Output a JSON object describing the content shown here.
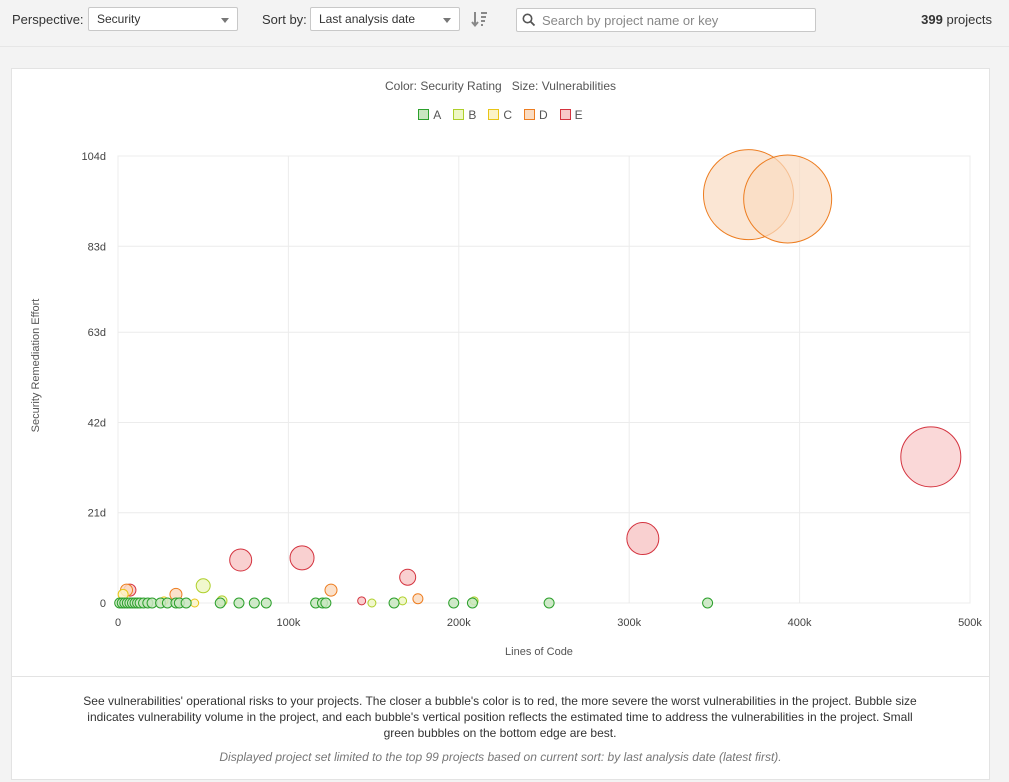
{
  "topbar": {
    "perspective_label": "Perspective:",
    "perspective_value": "Security",
    "sort_label": "Sort by:",
    "sort_value": "Last analysis date",
    "search_placeholder": "Search by project name or key",
    "project_count": "399",
    "project_count_suffix": "projects"
  },
  "legend": {
    "subtitle": "Color: Security Rating   Size: Vulnerabilities",
    "items": [
      {
        "label": "A",
        "fill": "#c8e6c0",
        "stroke": "#2ca02c"
      },
      {
        "label": "B",
        "fill": "#eef7c4",
        "stroke": "#aecf2a"
      },
      {
        "label": "C",
        "fill": "#fbf3c6",
        "stroke": "#e8c516"
      },
      {
        "label": "D",
        "fill": "#fadcc2",
        "stroke": "#ed7d20"
      },
      {
        "label": "E",
        "fill": "#f8c8c8",
        "stroke": "#d4333f"
      }
    ]
  },
  "chart_data": {
    "type": "scatter",
    "xlabel": "Lines of Code",
    "ylabel": "Security Remediation Effort",
    "xlim": [
      0,
      500000
    ],
    "ylim": [
      0,
      104
    ],
    "xticks": [
      0,
      100000,
      200000,
      300000,
      400000,
      500000
    ],
    "xtick_labels": [
      "0",
      "100k",
      "200k",
      "300k",
      "400k",
      "500k"
    ],
    "yticks": [
      0,
      21,
      42,
      63,
      83,
      104
    ],
    "ytick_labels": [
      "0",
      "21d",
      "42d",
      "63d",
      "83d",
      "104d"
    ],
    "grid": true,
    "legend_position": "top-center",
    "points": [
      {
        "x": 370000,
        "y": 95,
        "rating": "D",
        "r": 45
      },
      {
        "x": 393000,
        "y": 94,
        "rating": "D",
        "r": 44
      },
      {
        "x": 477000,
        "y": 34,
        "rating": "E",
        "r": 30
      },
      {
        "x": 308000,
        "y": 15,
        "rating": "E",
        "r": 16
      },
      {
        "x": 72000,
        "y": 10,
        "rating": "E",
        "r": 11
      },
      {
        "x": 108000,
        "y": 10.5,
        "rating": "E",
        "r": 12
      },
      {
        "x": 170000,
        "y": 6,
        "rating": "E",
        "r": 8
      },
      {
        "x": 143000,
        "y": 0.5,
        "rating": "E",
        "r": 4
      },
      {
        "x": 7000,
        "y": 3,
        "rating": "E",
        "r": 6
      },
      {
        "x": 125000,
        "y": 3,
        "rating": "D",
        "r": 6
      },
      {
        "x": 176000,
        "y": 1,
        "rating": "D",
        "r": 5
      },
      {
        "x": 34000,
        "y": 2,
        "rating": "D",
        "r": 6
      },
      {
        "x": 5000,
        "y": 3,
        "rating": "D",
        "r": 6
      },
      {
        "x": 50000,
        "y": 4,
        "rating": "B",
        "r": 7
      },
      {
        "x": 61000,
        "y": 0.5,
        "rating": "B",
        "r": 5
      },
      {
        "x": 149000,
        "y": 0,
        "rating": "B",
        "r": 4
      },
      {
        "x": 167000,
        "y": 0.5,
        "rating": "B",
        "r": 4
      },
      {
        "x": 209000,
        "y": 0.5,
        "rating": "B",
        "r": 4
      },
      {
        "x": 45000,
        "y": 0,
        "rating": "C",
        "r": 4
      },
      {
        "x": 3000,
        "y": 2,
        "rating": "C",
        "r": 5
      },
      {
        "x": 27000,
        "y": 0.5,
        "rating": "C",
        "r": 4
      },
      {
        "x": 1000,
        "y": 0,
        "rating": "A",
        "r": 5
      },
      {
        "x": 2500,
        "y": 0,
        "rating": "A",
        "r": 5
      },
      {
        "x": 4000,
        "y": 0,
        "rating": "A",
        "r": 5
      },
      {
        "x": 5500,
        "y": 0,
        "rating": "A",
        "r": 5
      },
      {
        "x": 7000,
        "y": 0,
        "rating": "A",
        "r": 5
      },
      {
        "x": 8500,
        "y": 0,
        "rating": "A",
        "r": 5
      },
      {
        "x": 10000,
        "y": 0,
        "rating": "A",
        "r": 5
      },
      {
        "x": 11500,
        "y": 0,
        "rating": "A",
        "r": 5
      },
      {
        "x": 13000,
        "y": 0,
        "rating": "A",
        "r": 5
      },
      {
        "x": 15000,
        "y": 0,
        "rating": "A",
        "r": 5
      },
      {
        "x": 17500,
        "y": 0,
        "rating": "A",
        "r": 5
      },
      {
        "x": 20000,
        "y": 0,
        "rating": "A",
        "r": 5
      },
      {
        "x": 25000,
        "y": 0,
        "rating": "A",
        "r": 5
      },
      {
        "x": 29000,
        "y": 0,
        "rating": "A",
        "r": 5
      },
      {
        "x": 34000,
        "y": 0,
        "rating": "A",
        "r": 5
      },
      {
        "x": 36000,
        "y": 0,
        "rating": "A",
        "r": 5
      },
      {
        "x": 40000,
        "y": 0,
        "rating": "A",
        "r": 5
      },
      {
        "x": 60000,
        "y": 0,
        "rating": "A",
        "r": 5
      },
      {
        "x": 71000,
        "y": 0,
        "rating": "A",
        "r": 5
      },
      {
        "x": 80000,
        "y": 0,
        "rating": "A",
        "r": 5
      },
      {
        "x": 87000,
        "y": 0,
        "rating": "A",
        "r": 5
      },
      {
        "x": 116000,
        "y": 0,
        "rating": "A",
        "r": 5
      },
      {
        "x": 120000,
        "y": 0,
        "rating": "A",
        "r": 5
      },
      {
        "x": 122000,
        "y": 0,
        "rating": "A",
        "r": 5
      },
      {
        "x": 162000,
        "y": 0,
        "rating": "A",
        "r": 5
      },
      {
        "x": 197000,
        "y": 0,
        "rating": "A",
        "r": 5
      },
      {
        "x": 208000,
        "y": 0,
        "rating": "A",
        "r": 5
      },
      {
        "x": 253000,
        "y": 0,
        "rating": "A",
        "r": 5
      },
      {
        "x": 346000,
        "y": 0,
        "rating": "A",
        "r": 5
      }
    ]
  },
  "footer": {
    "description": "See vulnerabilities' operational risks to your projects. The closer a bubble's color is to red, the more severe the worst vulnerabilities in the project. Bubble size indicates vulnerability volume in the project, and each bubble's vertical position reflects the estimated time to address the vulnerabilities in the project. Small green bubbles on the bottom edge are best.",
    "note": "Displayed project set limited to the top 99 projects based on current sort: by last analysis date (latest first)."
  }
}
